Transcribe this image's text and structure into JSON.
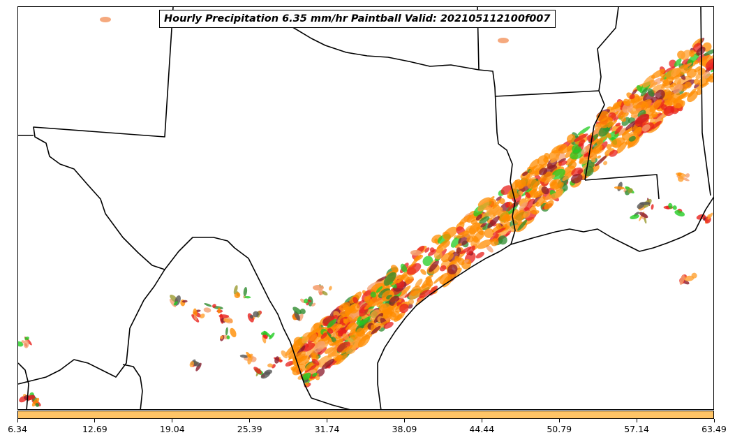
{
  "title": "Hourly Precipitation 6.35 mm/hr Paintball Valid: 202105112100f007",
  "colorbar": {
    "color": "#ffc466",
    "ticks": [
      "6.34",
      "12.69",
      "19.04",
      "25.39",
      "31.74",
      "38.09",
      "44.44",
      "50.79",
      "57.14",
      "63.49"
    ]
  },
  "paintball_colors": [
    "#ff8c00",
    "#ffa030",
    "#e8201c",
    "#8b1a2a",
    "#2e8b2e",
    "#22cc22",
    "#9a9a30",
    "#555555",
    "#f4a070"
  ]
}
